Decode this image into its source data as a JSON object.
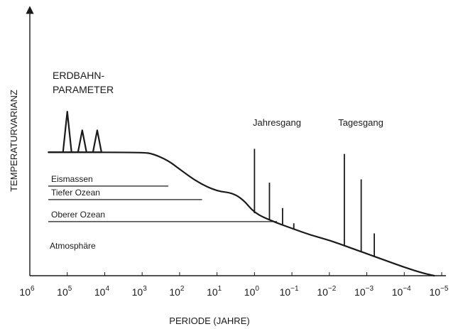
{
  "chart_data": {
    "type": "line",
    "xlabel": "PERIODE (JAHRE)",
    "ylabel": "TEMPERATURVARIANZ",
    "x_scale": "log",
    "x_direction": "decreasing",
    "xlim_exponent": [
      6,
      -5
    ],
    "x_ticks": [
      {
        "base": "10",
        "exp": "6"
      },
      {
        "base": "10",
        "exp": "5"
      },
      {
        "base": "10",
        "exp": "4"
      },
      {
        "base": "10",
        "exp": "3"
      },
      {
        "base": "10",
        "exp": "2"
      },
      {
        "base": "10",
        "exp": "1"
      },
      {
        "base": "10",
        "exp": "0"
      },
      {
        "base": "10",
        "exp": "−1"
      },
      {
        "base": "10",
        "exp": "−2"
      },
      {
        "base": "10",
        "exp": "−3"
      },
      {
        "base": "10",
        "exp": "−4"
      },
      {
        "base": "10",
        "exp": "−5"
      }
    ],
    "ylim": [
      0,
      100
    ],
    "y_ticks_shown": false,
    "grid": false,
    "spectrum": {
      "log10_period": [
        5.5,
        3.0,
        2.7,
        2.3,
        2.0,
        1.5,
        1.0,
        0.6,
        0.3,
        0.0,
        -0.5,
        -1.0,
        -1.5,
        -2.0,
        -2.5,
        -3.0,
        -3.5,
        -4.0,
        -4.5,
        -4.8
      ],
      "y": [
        73,
        73,
        72,
        68,
        63,
        55,
        50,
        49,
        45,
        37,
        32,
        28,
        24,
        21,
        17,
        13,
        9,
        5,
        1.5,
        0
      ]
    },
    "orbital_peaks": [
      {
        "log10_period": 5.0,
        "y": 97
      },
      {
        "log10_period": 4.6,
        "y": 86
      },
      {
        "log10_period": 4.2,
        "y": 86
      }
    ],
    "spectral_lines": [
      {
        "log10_period": 0.0,
        "y": 75
      },
      {
        "log10_period": -0.4,
        "y": 55
      },
      {
        "log10_period": -0.75,
        "y": 40
      },
      {
        "log10_period": -1.05,
        "y": 31
      },
      {
        "log10_period": -2.4,
        "y": 72
      },
      {
        "log10_period": -2.85,
        "y": 57
      },
      {
        "log10_period": -3.2,
        "y": 25
      }
    ],
    "reservoir_lines": [
      {
        "label": "Eismassen",
        "y": 53,
        "end_log10_period": 2.3
      },
      {
        "label": "Tiefer Ozean",
        "y": 45,
        "end_log10_period": 1.4
      },
      {
        "label": "Oberer Ozean",
        "y": 32,
        "end_log10_period": -0.6
      }
    ],
    "annotations": {
      "orbital": [
        "ERDBAHN-",
        "PARAMETER"
      ],
      "annual": "Jahresgang",
      "daily": "Tagesgang",
      "atmosphere": "Atmosphäre"
    }
  }
}
